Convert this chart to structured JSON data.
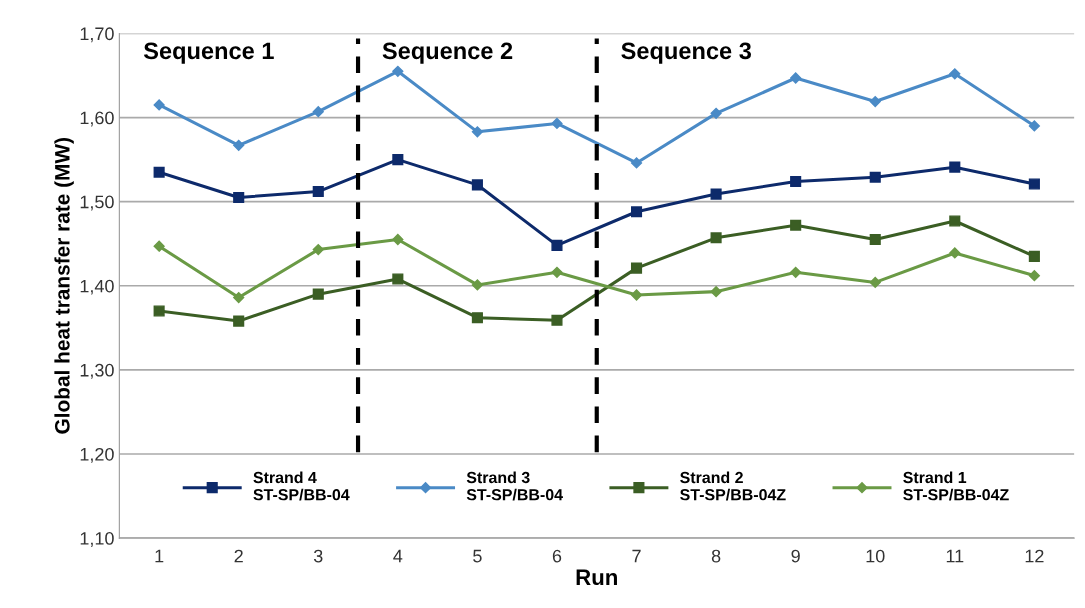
{
  "chart_data": {
    "type": "line",
    "xlabel": "Run",
    "ylabel": "Global heat transfer rate (MW)",
    "x": [
      1,
      2,
      3,
      4,
      5,
      6,
      7,
      8,
      9,
      10,
      11,
      12
    ],
    "xlim": [
      0.5,
      12.5
    ],
    "xticks": [
      1,
      2,
      3,
      4,
      5,
      6,
      7,
      8,
      9,
      10,
      11,
      12
    ],
    "ylim": [
      1.1,
      1.7
    ],
    "yticks": [
      {
        "value": 1.1,
        "label": "1,10"
      },
      {
        "value": 1.2,
        "label": "1,20"
      },
      {
        "value": 1.3,
        "label": "1,30"
      },
      {
        "value": 1.4,
        "label": "1,40"
      },
      {
        "value": 1.5,
        "label": "1,50"
      },
      {
        "value": 1.6,
        "label": "1,60"
      },
      {
        "value": 1.7,
        "label": "1,70"
      }
    ],
    "grid": "y",
    "legend": "bottom",
    "series": [
      {
        "name": "Strand 4\nST-SP/BB-04",
        "color": "#0d2a6b",
        "marker": "square",
        "values": [
          1.535,
          1.505,
          1.512,
          1.55,
          1.52,
          1.448,
          1.488,
          1.509,
          1.524,
          1.529,
          1.541,
          1.521
        ]
      },
      {
        "name": "Strand 3\nST-SP/BB-04",
        "color": "#4a8ac6",
        "marker": "diamond",
        "values": [
          1.615,
          1.567,
          1.607,
          1.655,
          1.583,
          1.593,
          1.546,
          1.605,
          1.647,
          1.619,
          1.652,
          1.59
        ]
      },
      {
        "name": "Strand 2\nST-SP/BB-04Z",
        "color": "#3b5e24",
        "marker": "square",
        "values": [
          1.37,
          1.358,
          1.39,
          1.408,
          1.362,
          1.359,
          1.421,
          1.457,
          1.472,
          1.455,
          1.477,
          1.435
        ]
      },
      {
        "name": "Strand 1\nST-SP/BB-04Z",
        "color": "#6a9a45",
        "marker": "diamond",
        "values": [
          1.447,
          1.386,
          1.443,
          1.455,
          1.401,
          1.416,
          1.389,
          1.393,
          1.416,
          1.404,
          1.439,
          1.412
        ]
      }
    ],
    "ref_lines": [
      {
        "axis": "x",
        "value": 3.5,
        "color": "#000000",
        "line_style": "dashed"
      },
      {
        "axis": "x",
        "value": 6.5,
        "color": "#000000",
        "line_style": "dashed"
      }
    ],
    "annotations": [
      "Sequence 1",
      "Sequence 2",
      "Sequence 3"
    ]
  }
}
